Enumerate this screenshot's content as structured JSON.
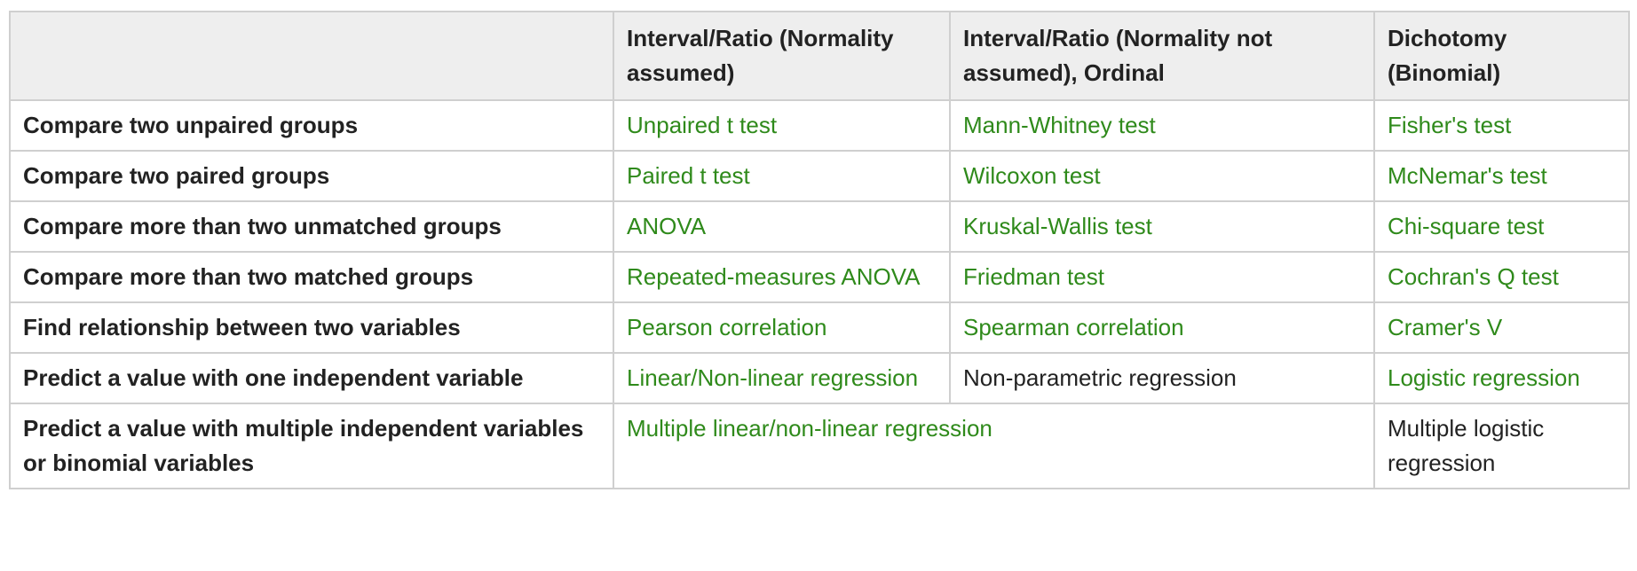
{
  "table": {
    "headers": [
      "",
      "Interval/Ratio (Normality assumed)",
      "Interval/Ratio (Normality not assumed), Ordinal",
      "Dichotomy (Binomial)"
    ],
    "rows": [
      {
        "label": "Compare two unpaired groups",
        "cells": [
          "Unpaired t test",
          "Mann-Whitney test",
          "Fisher's test"
        ]
      },
      {
        "label": "Compare two paired groups",
        "cells": [
          "Paired t test",
          "Wilcoxon test",
          "McNemar's test"
        ]
      },
      {
        "label": "Compare more than two unmatched groups",
        "cells": [
          "ANOVA",
          "Kruskal-Wallis test",
          "Chi-square test"
        ]
      },
      {
        "label": "Compare more than two matched groups",
        "cells": [
          "Repeated-measures ANOVA",
          "Friedman test",
          "Cochran's Q test"
        ]
      },
      {
        "label": "Find relationship between two variables",
        "cells": [
          "Pearson correlation",
          "Spearman correlation",
          "Cramer's V"
        ]
      },
      {
        "label": "Predict a value with one independent variable",
        "cells": [
          "Linear/Non-linear regression",
          "Non-parametric regression",
          "Logistic regression"
        ]
      },
      {
        "label": "Predict a value with multiple independent variables or binomial variables",
        "cells": [
          "Multiple linear/non-linear regression",
          "Multiple logistic regression"
        ]
      }
    ]
  },
  "colors": {
    "link": "#2f8a1b",
    "text": "#222222",
    "header_bg": "#eeeeee",
    "border": "#cfcfcf"
  }
}
